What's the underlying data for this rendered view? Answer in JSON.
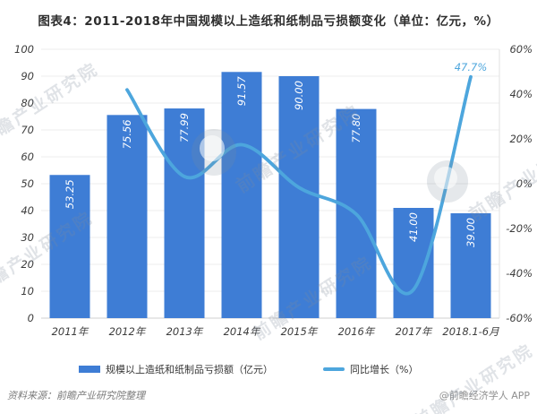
{
  "title": "图表4：2011-2018年中国规模以上造纸和纸制品亏损额变化（单位：亿元，%）",
  "chart_data": {
    "type": "bar",
    "subtype": "bar+line combo",
    "categories": [
      "2011年",
      "2012年",
      "2013年",
      "2014年",
      "2015年",
      "2016年",
      "2017年",
      "2018.1-6月"
    ],
    "series": [
      {
        "name": "规模以上造纸和纸制品亏损额（亿元）",
        "type": "bar",
        "axis": "left",
        "color": "#3E7DD5",
        "values": [
          53.25,
          75.56,
          77.99,
          91.57,
          90.0,
          77.8,
          41.0,
          39.0
        ],
        "value_labels": [
          "53.25",
          "75.56",
          "77.99",
          "91.57",
          "90.00",
          "77.80",
          "41.00",
          "39.00"
        ]
      },
      {
        "name": "同比增长（%）",
        "type": "line",
        "axis": "right",
        "color": "#4DA6DD",
        "values": [
          null,
          41.9,
          3.2,
          17.4,
          -1.7,
          -13.6,
          -47.3,
          47.7
        ],
        "annotation": {
          "index": 7,
          "text": "47.7%"
        }
      }
    ],
    "left_axis": {
      "min": 0,
      "max": 100,
      "step": 10,
      "ticks": [
        "0",
        "10",
        "20",
        "30",
        "40",
        "50",
        "60",
        "70",
        "80",
        "90",
        "100"
      ]
    },
    "right_axis": {
      "min": -60,
      "max": 60,
      "step": 20,
      "ticks": [
        "-60%",
        "-40%",
        "-20%",
        "0%",
        "20%",
        "40%",
        "60%"
      ]
    },
    "grid": true,
    "legend_position": "bottom"
  },
  "legend": {
    "items": [
      {
        "label": "规模以上造纸和纸制品亏损额（亿元）",
        "marker": "bar-swatch",
        "color": "#3E7DD5"
      },
      {
        "label": "同比增长（%）",
        "marker": "line-swatch",
        "color": "#4DA6DD"
      }
    ]
  },
  "footer": {
    "source": "资料来源：前瞻产业研究院整理",
    "brand": "@前瞻经济学人 APP"
  },
  "watermark": {
    "text": "前瞻产业研究院",
    "logo": "qianzhan-logo"
  },
  "colors": {
    "bar": "#3E7DD5",
    "line": "#4DA6DD",
    "bar_value_text": "#ffffff",
    "axis_text": "#3d3d3d",
    "grid": "#ececec",
    "axis_line": "#cfcfcf",
    "plot_right_border": "#e2e2e2",
    "annotation_text": "#4DA6DD",
    "title_text": "#2e2e2e"
  }
}
